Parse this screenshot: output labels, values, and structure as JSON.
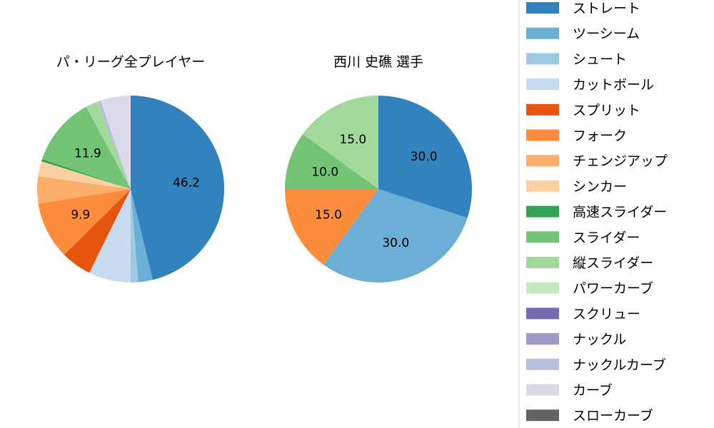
{
  "chart_data": [
    {
      "type": "pie",
      "title": "パ・リーグ全プレイヤー",
      "categories": [
        "ストレート",
        "ツーシーム",
        "シュート",
        "カットボール",
        "スプリット",
        "フォーク",
        "チェンジアップ",
        "シンカー",
        "高速スライダー",
        "スライダー",
        "縦スライダー",
        "ナックルカーブ",
        "カーブ"
      ],
      "values": [
        46.2,
        2.5,
        1.3,
        7.3,
        5.3,
        9.9,
        4.7,
        2.6,
        0.4,
        11.9,
        2.2,
        0.5,
        5.2
      ],
      "labels_shown": [
        "46.2",
        "",
        "",
        "",
        "",
        "9.9",
        "",
        "",
        "",
        "11.9",
        "",
        "",
        ""
      ]
    },
    {
      "type": "pie",
      "title": "西川 史礁  選手",
      "categories": [
        "ストレート",
        "ツーシーム",
        "フォーク",
        "スライダー",
        "縦スライダー"
      ],
      "values": [
        30.0,
        30.0,
        15.0,
        10.0,
        15.0
      ],
      "labels_shown": [
        "30.0",
        "30.0",
        "15.0",
        "10.0",
        "15.0"
      ]
    }
  ],
  "legend": {
    "placement": "right",
    "items": [
      {
        "label": "ストレート",
        "color": "#3182bd"
      },
      {
        "label": "ツーシーム",
        "color": "#6baed6"
      },
      {
        "label": "シュート",
        "color": "#9ecae1"
      },
      {
        "label": "カットボール",
        "color": "#c6dbef"
      },
      {
        "label": "スプリット",
        "color": "#e6550d"
      },
      {
        "label": "フォーク",
        "color": "#fd8d3c"
      },
      {
        "label": "チェンジアップ",
        "color": "#fdae6b"
      },
      {
        "label": "シンカー",
        "color": "#fdd0a2"
      },
      {
        "label": "高速スライダー",
        "color": "#31a354"
      },
      {
        "label": "スライダー",
        "color": "#74c476"
      },
      {
        "label": "縦スライダー",
        "color": "#a1d99b"
      },
      {
        "label": "パワーカーブ",
        "color": "#c7e9c0"
      },
      {
        "label": "スクリュー",
        "color": "#756bb1"
      },
      {
        "label": "ナックル",
        "color": "#9e9ac8"
      },
      {
        "label": "ナックルカーブ",
        "color": "#bcbddc"
      },
      {
        "label": "カーブ",
        "color": "#dadaeb"
      },
      {
        "label": "スローカーブ",
        "color": "#636363"
      }
    ]
  }
}
